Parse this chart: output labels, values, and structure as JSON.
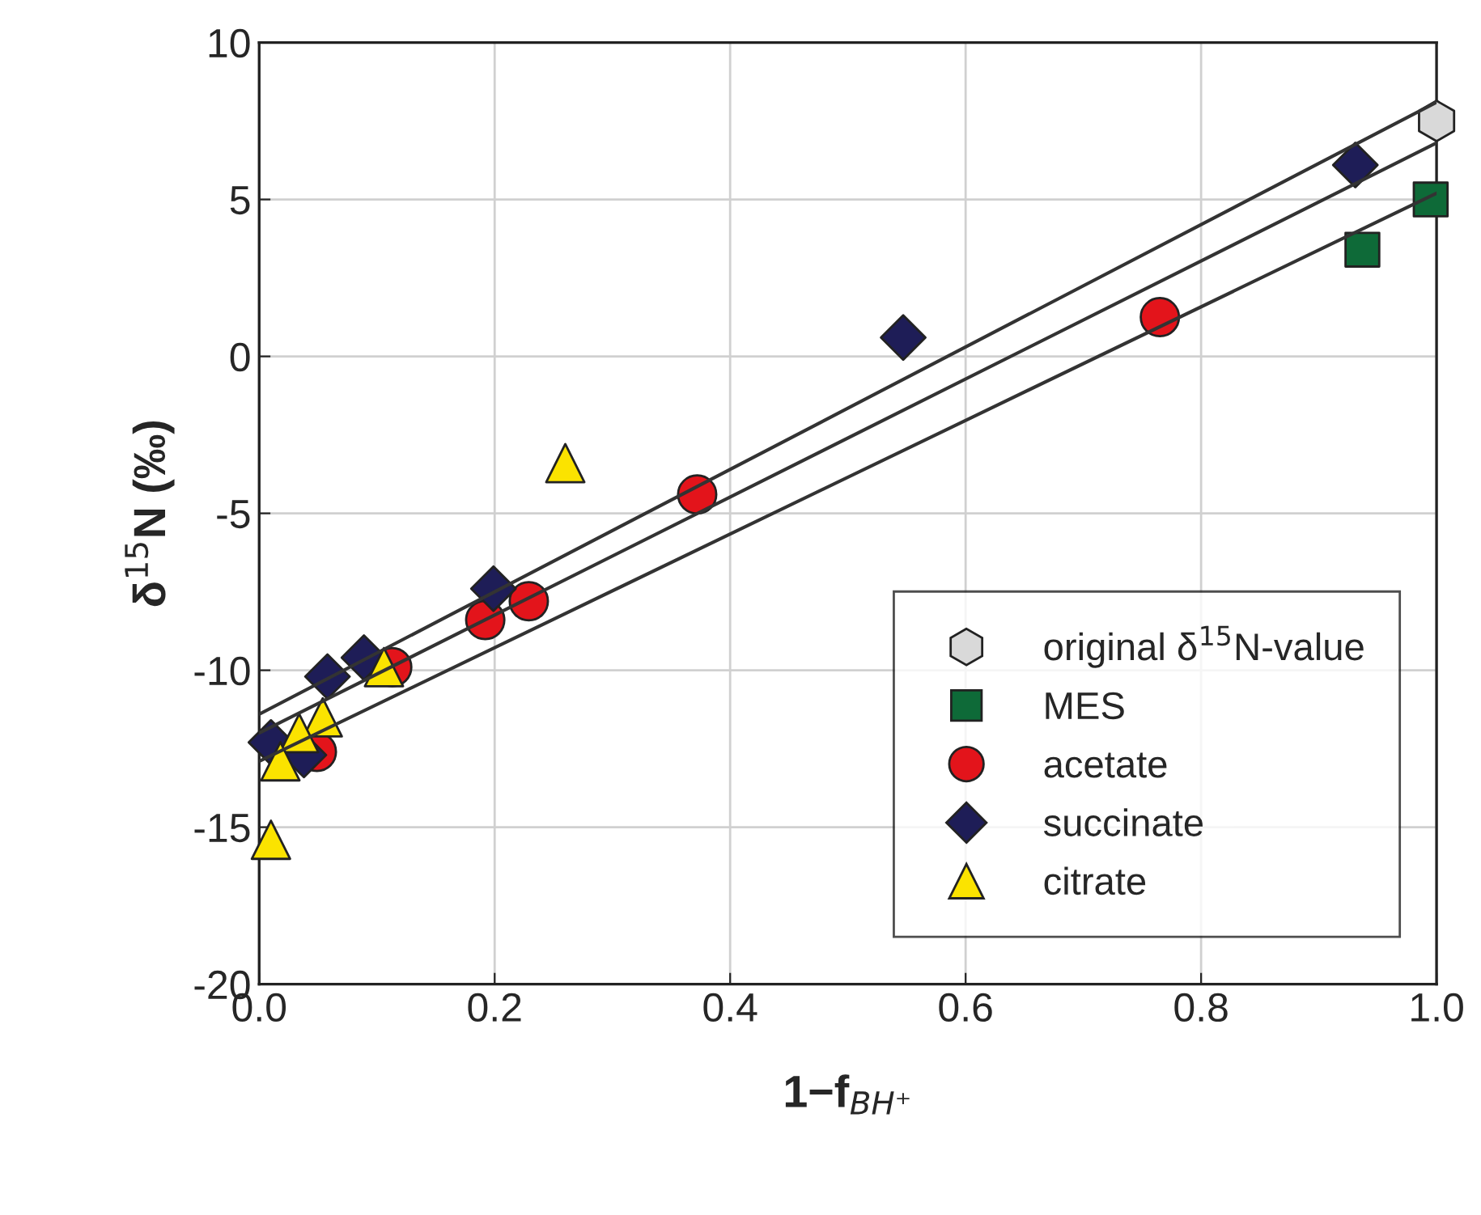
{
  "chart_data": {
    "type": "scatter",
    "xlabel": "1−f$_{BH⁺}$",
    "ylabel": "δ$^{15}$N (‰)",
    "xlim": [
      0,
      1
    ],
    "ylim": [
      -20,
      10
    ],
    "xticks": [
      {
        "value": 0,
        "label": "0.0"
      },
      {
        "value": 0.2,
        "label": "0.2"
      },
      {
        "value": 0.4,
        "label": "0.4"
      },
      {
        "value": 0.6,
        "label": "0.6"
      },
      {
        "value": 0.8,
        "label": "0.8"
      },
      {
        "value": 1,
        "label": "1.0"
      }
    ],
    "yticks": [
      -20,
      -15,
      -10,
      -5,
      0,
      5,
      10
    ],
    "grid": true,
    "legend": "bottom right",
    "series": [
      {
        "type": "line",
        "color": "#333333",
        "marker": "none",
        "line_style": "solid",
        "x": [
          0,
          1
        ],
        "values": [
          -11.4,
          8.1
        ]
      },
      {
        "type": "line",
        "color": "#333333",
        "marker": "none",
        "line_style": "solid",
        "x": [
          0,
          1
        ],
        "values": [
          -12.0,
          6.8
        ]
      },
      {
        "type": "line",
        "color": "#333333",
        "marker": "none",
        "line_style": "solid",
        "x": [
          0,
          1
        ],
        "values": [
          -12.9,
          5.2
        ]
      },
      {
        "name": "original δ$^{15}$N-value",
        "color": "#d9d9d9",
        "x": [
          1.0
        ],
        "values": [
          7.5
        ]
      },
      {
        "name": "MES",
        "marker": "square",
        "color": "#0e6a38",
        "x": [
          0.995,
          0.937
        ],
        "values": [
          5.0,
          3.4
        ]
      },
      {
        "name": "acetate",
        "marker": "circle",
        "color": "#e3141b",
        "x": [
          0.765,
          0.372,
          0.229,
          0.192,
          0.113,
          0.049
        ],
        "values": [
          1.25,
          -4.4,
          -7.8,
          -8.4,
          -9.9,
          -12.6
        ]
      },
      {
        "name": "succinate",
        "marker": "diamond",
        "color": "#1e1d57",
        "x": [
          0.931,
          0.547,
          0.199,
          0.089,
          0.058,
          0.038,
          0.01
        ],
        "values": [
          6.1,
          0.6,
          -7.4,
          -9.6,
          -10.2,
          -12.7,
          -12.3
        ]
      },
      {
        "name": "citrate",
        "marker": "triangle",
        "color": "#fbe300",
        "x": [
          0.26,
          0.106,
          0.054,
          0.034,
          0.018,
          0.01
        ],
        "values": [
          -3.4,
          -9.9,
          -11.5,
          -12.0,
          -12.9,
          -15.4
        ]
      }
    ]
  }
}
